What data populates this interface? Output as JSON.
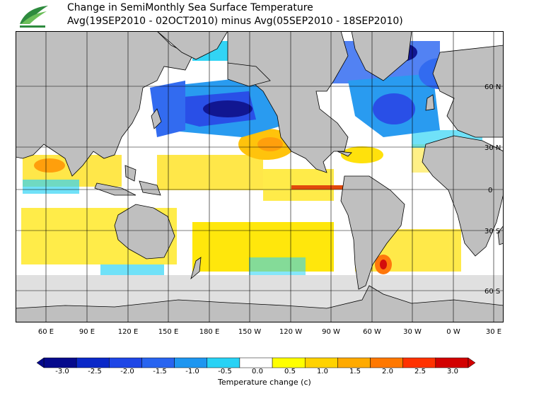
{
  "header": {
    "title": "Change in SemiMonthly Sea Surface Temperature",
    "subtitle": "Avg(19SEP2010 - 02OCT2010) minus Avg(05SEP2010 - 18SEP2010)"
  },
  "logo": {
    "icon": "leaf-logo-icon",
    "color": "#2e8b3e"
  },
  "map": {
    "projection": "equirectangular",
    "lon_labels": [
      "60 E",
      "90 E",
      "120 E",
      "150 E",
      "180 E",
      "150 W",
      "120 W",
      "90 W",
      "60 W",
      "30 W",
      "0 W",
      "30 E"
    ],
    "lat_labels": [
      "60 N",
      "30 N",
      "0",
      "30 S",
      "60 S"
    ],
    "colors": {
      "land": "#bfbfbf",
      "ice": "#e0e0e0",
      "grid": "#000000"
    }
  },
  "colorbar": {
    "title": "Temperature change  (c)",
    "ticks": [
      "-3.0",
      "-2.5",
      "-2.0",
      "-1.5",
      "-1.0",
      "-0.5",
      "0.0",
      "0.5",
      "1.0",
      "1.5",
      "2.0",
      "2.5",
      "3.0"
    ],
    "colors": [
      "#050a8c",
      "#0a28c8",
      "#1e46e6",
      "#2864f0",
      "#1e96f0",
      "#28d2f5",
      "#ffffff",
      "#ffff00",
      "#ffd200",
      "#ffaa00",
      "#ff7800",
      "#ff3200",
      "#d20000"
    ]
  }
}
